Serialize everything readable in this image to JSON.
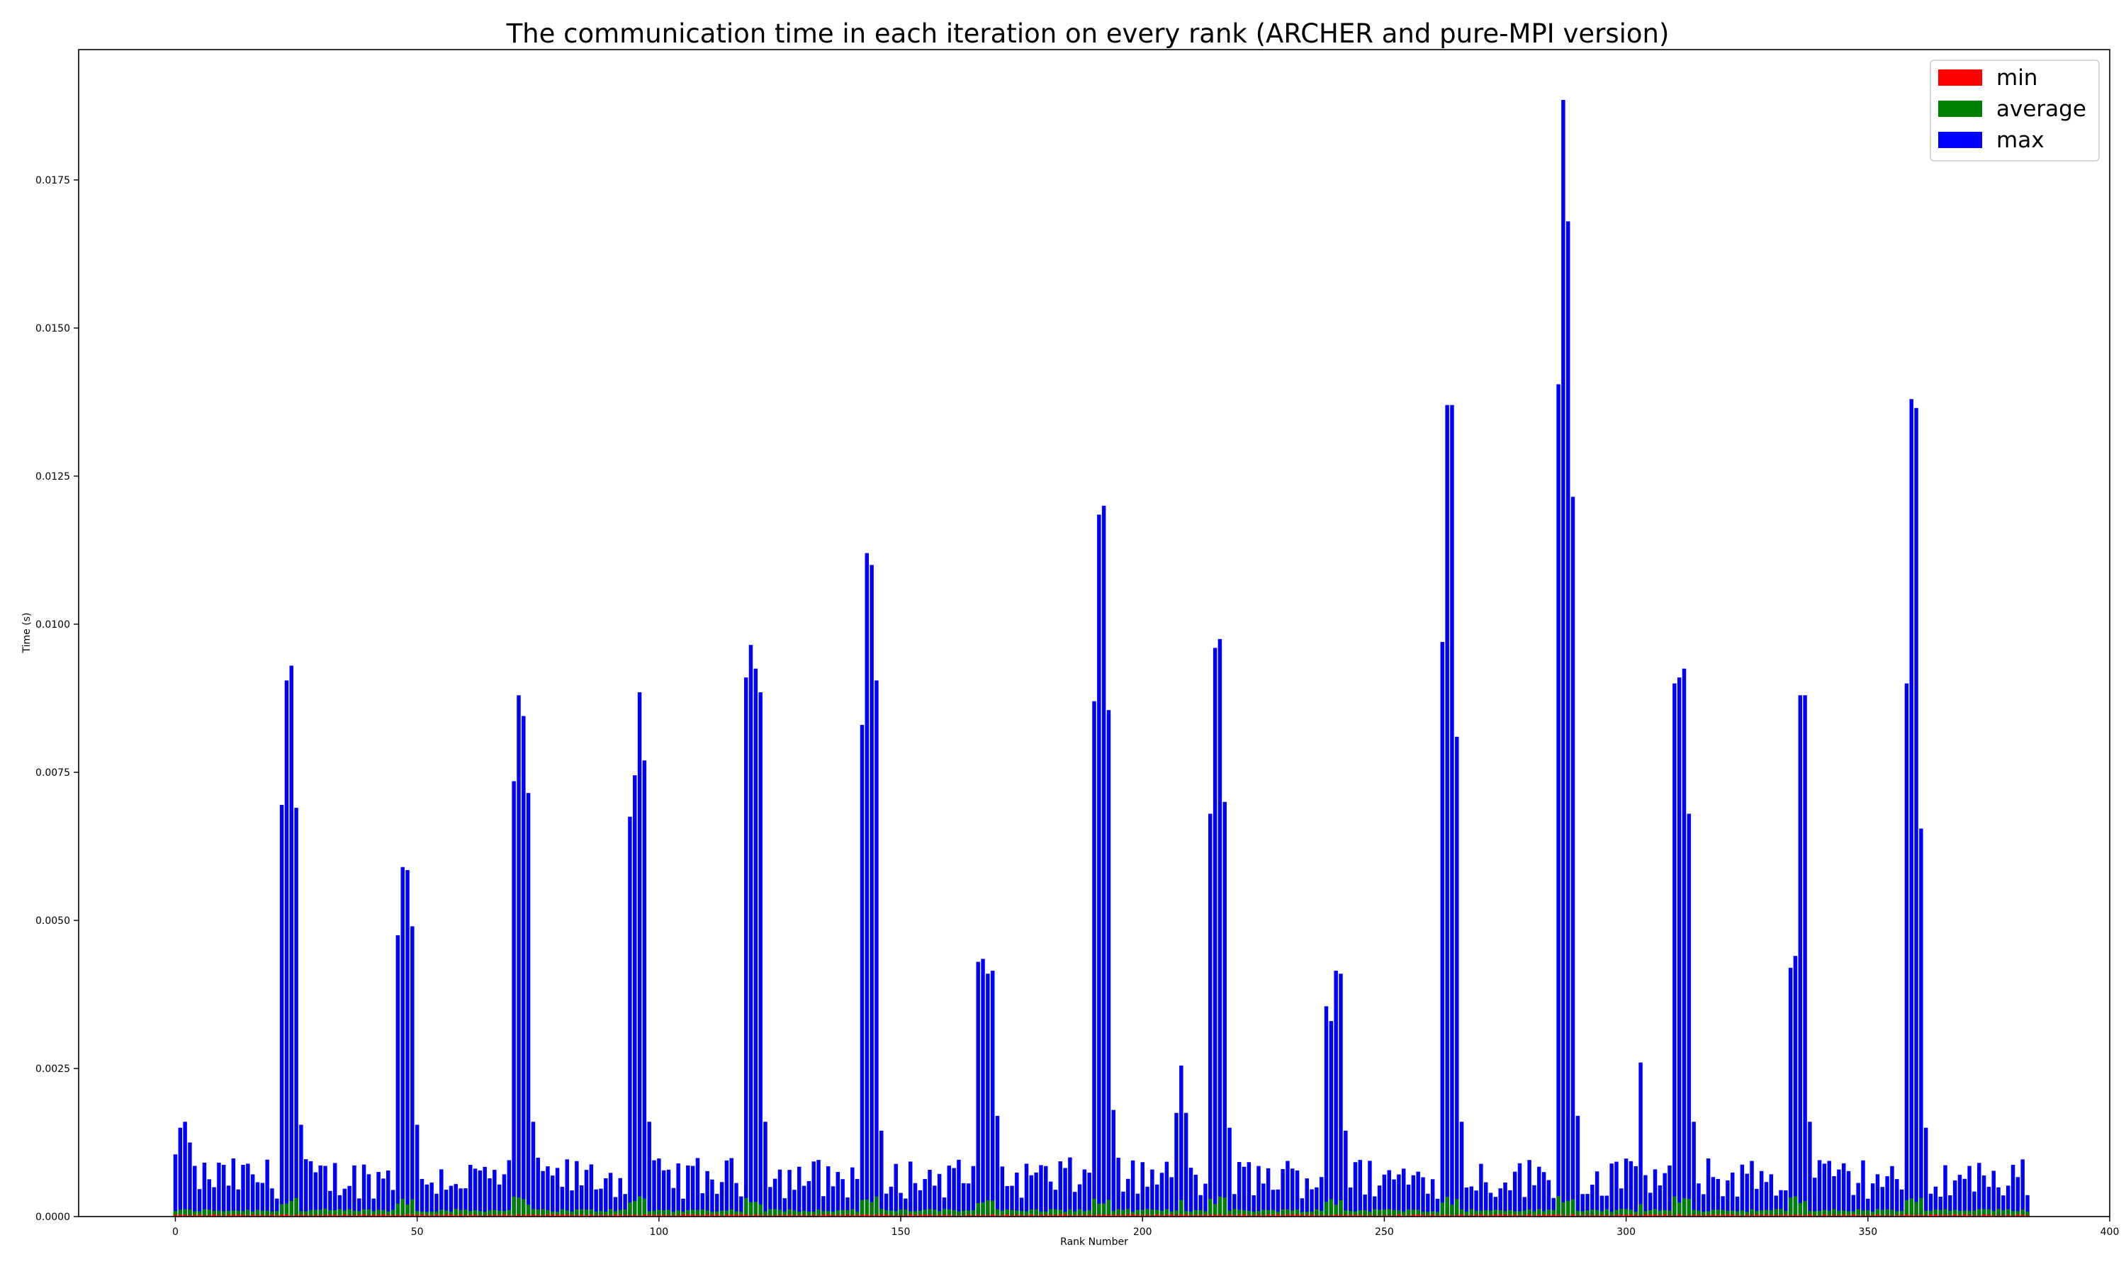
{
  "chart_data": {
    "type": "bar",
    "title": "The communication time in each iteration on every rank (ARCHER and pure-MPI version)",
    "xlabel": "Rank Number",
    "ylabel": "Time (s)",
    "xlim": [
      -20,
      400
    ],
    "ylim": [
      0,
      0.0197
    ],
    "xticks": [
      0,
      50,
      100,
      150,
      200,
      250,
      300,
      350,
      400
    ],
    "yticks": [
      "0.0000",
      "0.0025",
      "0.0050",
      "0.0075",
      "0.0100",
      "0.0125",
      "0.0150",
      "0.0175"
    ],
    "grid": false,
    "legend_position": "top-right",
    "series": [
      {
        "name": "min",
        "color": "#ff0000",
        "values": "n/a"
      },
      {
        "name": "average",
        "color": "#008000",
        "values": "n/a"
      },
      {
        "name": "max",
        "color": "#0000ff",
        "values": "n/a"
      }
    ],
    "rank_count": 384,
    "groups": [
      {
        "start": 0,
        "peaks": [
          0.00105,
          0.0015,
          0.0016,
          0.00125
        ]
      },
      {
        "start": 22,
        "peaks": [
          0.00695,
          0.00905,
          0.0093,
          0.0069,
          0.00155
        ]
      },
      {
        "start": 46,
        "peaks": [
          0.00475,
          0.0059,
          0.00585,
          0.0049,
          0.00155
        ]
      },
      {
        "start": 70,
        "peaks": [
          0.00735,
          0.0088,
          0.00845,
          0.00715,
          0.0016
        ]
      },
      {
        "start": 94,
        "peaks": [
          0.00675,
          0.00745,
          0.00885,
          0.0077,
          0.0016
        ]
      },
      {
        "start": 118,
        "peaks": [
          0.0091,
          0.00965,
          0.00925,
          0.00885,
          0.0016
        ]
      },
      {
        "start": 142,
        "peaks": [
          0.0083,
          0.0112,
          0.011,
          0.00905,
          0.00145
        ]
      },
      {
        "start": 166,
        "peaks": [
          0.0043,
          0.00435,
          0.0041,
          0.00415,
          0.0017
        ]
      },
      {
        "start": 190,
        "peaks": [
          0.0087,
          0.01185,
          0.012,
          0.00855,
          0.0018
        ]
      },
      {
        "start": 207,
        "peaks": [
          0.00175,
          0.00255,
          0.00175
        ]
      },
      {
        "start": 214,
        "peaks": [
          0.0068,
          0.0096,
          0.00975,
          0.007,
          0.0015
        ]
      },
      {
        "start": 238,
        "peaks": [
          0.00355,
          0.0033,
          0.00415,
          0.0041,
          0.00145
        ]
      },
      {
        "start": 262,
        "peaks": [
          0.0097,
          0.0137,
          0.0137,
          0.0081,
          0.0016
        ]
      },
      {
        "start": 286,
        "peaks": [
          0.01405,
          0.01885,
          0.0168,
          0.01215,
          0.0017
        ]
      },
      {
        "start": 303,
        "peaks": [
          0.0026
        ]
      },
      {
        "start": 310,
        "peaks": [
          0.009,
          0.0091,
          0.00925,
          0.0068,
          0.0016
        ]
      },
      {
        "start": 334,
        "peaks": [
          0.0042,
          0.0044,
          0.0088,
          0.0088,
          0.0016
        ]
      },
      {
        "start": 358,
        "peaks": [
          0.009,
          0.0138,
          0.01365,
          0.00655,
          0.0015
        ]
      }
    ],
    "baseline_max_range": [
      0.0003,
      0.001
    ],
    "average_typical": 0.0001,
    "average_at_peaks": 0.00025,
    "min_typical": 3e-05
  }
}
